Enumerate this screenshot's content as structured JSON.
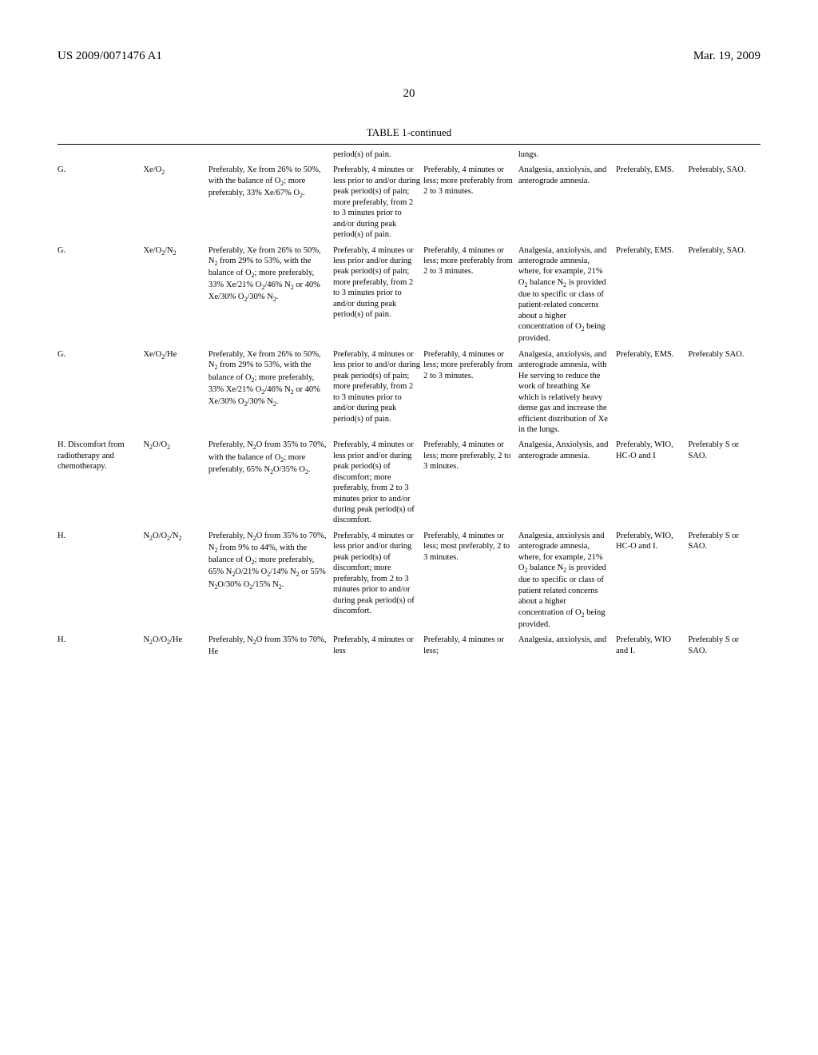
{
  "header": {
    "left": "US 2009/0071476 A1",
    "right": "Mar. 19, 2009"
  },
  "page_number": "20",
  "table_caption": "TABLE 1-continued",
  "rows": [
    {
      "a": "",
      "b": "",
      "c": "",
      "d": "period(s) of pain.",
      "e": "",
      "f": "lungs.",
      "g": "",
      "h": ""
    },
    {
      "a": "G.",
      "b": "Xe/O₂",
      "c": "Preferably, Xe from 26% to 50%, with the balance of O₂; more preferably, 33% Xe/67% O₂.",
      "d": "Preferably, 4 minutes or less prior to and/or during peak period(s) of pain; more preferably, from 2 to 3 minutes prior to and/or during peak period(s) of pain.",
      "e": "Preferably, 4 minutes or less; more preferably from 2 to 3 minutes.",
      "f": "Analgesia, anxiolysis, and anterograde amnesia.",
      "g": "Preferably, EMS.",
      "h": "Preferably, SAO."
    },
    {
      "a": "G.",
      "b": "Xe/O₂/N₂",
      "c": "Preferably, Xe from 26% to 50%, N₂ from 29% to 53%, with the balance of O₂; more preferably, 33% Xe/21% O₂/46% N₂ or 40% Xe/30% O₂/30% N₂.",
      "d": "Preferably, 4 minutes or less prior and/or during peak period(s) of pain; more preferably, from 2 to 3 minutes prior to and/or during peak period(s) of pain.",
      "e": "Preferably, 4 minutes or less; more preferably from 2 to 3 minutes.",
      "f": "Analgesia, anxiolysis, and anterograde amnesia, where, for example, 21% O₂ balance N₂ is provided due to specific or class of patient-related concerns about a higher concentration of O₂ being provided.",
      "g": "Preferably, EMS.",
      "h": "Preferably, SAO."
    },
    {
      "a": "G.",
      "b": "Xe/O₂/He",
      "c": "Preferably, Xe from 26% to 50%, N₂ from 29% to 53%, with the balance of O₂; more preferably, 33% Xe/21% O₂/46% N₂ or 40% Xe/30% O₂/30% N₂.",
      "d": "Preferably, 4 minutes or less prior to and/or during peak period(s) of pain; more preferably, from 2 to 3 minutes prior to and/or during peak period(s) of pain.",
      "e": "Preferably, 4 minutes or less; more preferably from 2 to 3 minutes.",
      "f": "Analgesia, anxiolysis, and anterograde amnesia, with He serving to reduce the work of breathing Xe which is relatively heavy dense gas and increase the efficient distribution of Xe in the lungs.",
      "g": "Preferably, EMS.",
      "h": "Preferably SAO."
    },
    {
      "a": "H. Discomfort from radiotherapy and chemotherapy.",
      "b": "N₂O/O₂",
      "c": "Preferably, N₂O from 35% to 70%, with the balance of O₂; more preferably, 65% N₂O/35% O₂.",
      "d": "Preferably, 4 minutes or less prior and/or during peak period(s) of discomfort; more preferably, from 2 to 3 minutes prior to and/or during peak period(s) of discomfort.",
      "e": "Preferably, 4 minutes or less; more preferably, 2 to 3 minutes.",
      "f": "Analgesia, Anxiolysis, and anterograde amnesia.",
      "g": "Preferably, WIO, HC-O and I",
      "h": "Preferably S or SAO."
    },
    {
      "a": "H.",
      "b": "N₂O/O₂/N₂",
      "c": "Preferably, N₂O from 35% to 70%, N₂ from 9% to 44%, with the balance of O₂; more preferably, 65% N₂O/21% O₂/14% N₂ or 55% N₂O/30% O₂/15% N₂.",
      "d": "Preferably, 4 minutes or less prior and/or during peak period(s) of discomfort; more preferably, from 2 to 3 minutes prior to and/or during peak period(s) of discomfort.",
      "e": "Preferably, 4 minutes or less; most preferably, 2 to 3 minutes.",
      "f": "Analgesia, anxiolysis and anterograde amnesia, where, for example, 21% O₂ balance N₂ is provided due to specific or class of patient related concerns about a higher concentration of O₂ being provided.",
      "g": "Preferably, WIO, HC-O and I.",
      "h": "Preferably S or SAO."
    },
    {
      "a": "H.",
      "b": "N₂O/O₂/He",
      "c": "Preferably, N₂O from 35% to 70%, He",
      "d": "Preferably, 4 minutes or less",
      "e": "Preferably, 4 minutes or less;",
      "f": "Analgesia, anxiolysis, and",
      "g": "Preferably, WIO and I.",
      "h": "Preferably S or SAO."
    }
  ]
}
